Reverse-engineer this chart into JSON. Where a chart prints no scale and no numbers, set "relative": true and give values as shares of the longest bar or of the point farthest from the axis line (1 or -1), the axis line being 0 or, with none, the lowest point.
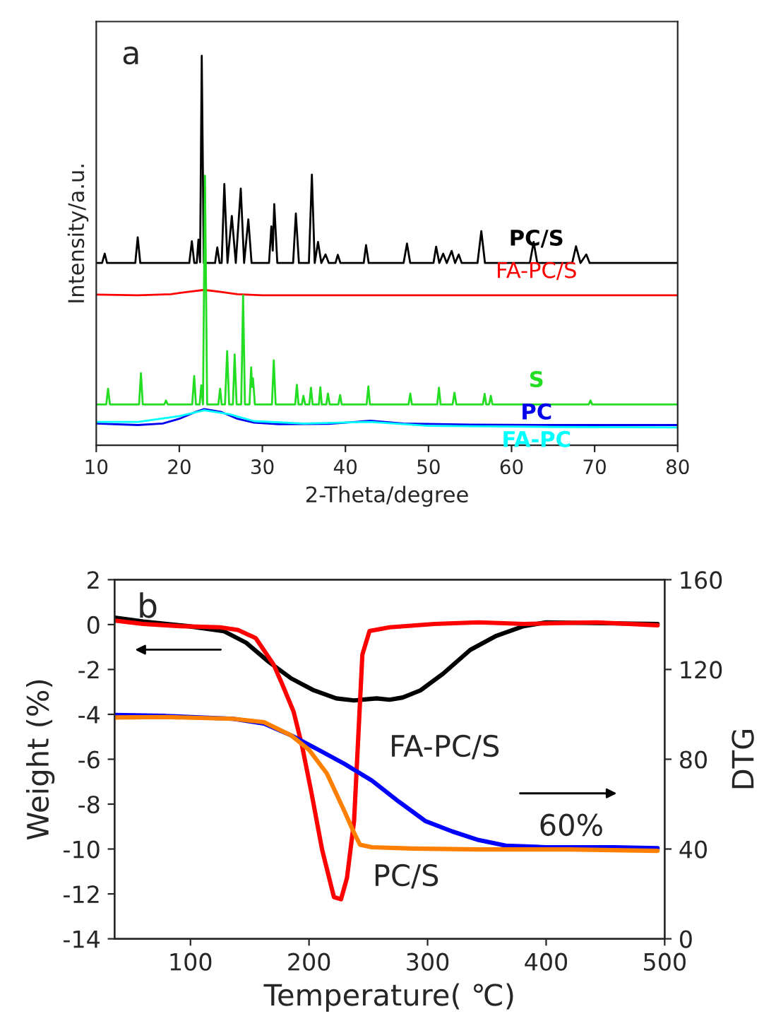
{
  "chart_data": [
    {
      "type": "line",
      "relative": true,
      "xlabel": "2-Theta/degree",
      "ylabel": "Intensity/a.u.",
      "xlim": [
        10,
        80
      ],
      "xticks": [
        10,
        20,
        30,
        40,
        50,
        60,
        70,
        80
      ],
      "legend": false,
      "grid": false,
      "marker": "none",
      "line_style": "solid",
      "annotations": [
        "a"
      ],
      "series": [
        {
          "name": "PC/S",
          "color": "#000000",
          "x": [
            10,
            10.7,
            11.02,
            11.3,
            14.7,
            14.99,
            15.3,
            21.2,
            21.51,
            21.8,
            22.1,
            22.3,
            22.5,
            22.7,
            22.95,
            24.3,
            24.57,
            24.85,
            25.1,
            25.42,
            25.8,
            26.32,
            26.8,
            27.4,
            27.8,
            28.31,
            28.7,
            30.8,
            31.08,
            31.25,
            31.43,
            31.8,
            33.7,
            34.03,
            34.4,
            35.6,
            35.96,
            36.3,
            36.7,
            37.1,
            37.6,
            38.0,
            38.8,
            39.08,
            39.4,
            42.2,
            42.48,
            42.8,
            47.0,
            47.41,
            47.8,
            50.6,
            50.92,
            51.3,
            51.77,
            52.2,
            52.79,
            53.2,
            53.64,
            54.0,
            55.9,
            56.36,
            56.8,
            62.2,
            62.66,
            63.1,
            67.3,
            67.76,
            68.3,
            69.0,
            69.4,
            80
          ],
          "values": [
            0.468,
            0.468,
            0.492,
            0.468,
            0.468,
            0.534,
            0.468,
            0.468,
            0.524,
            0.468,
            0.468,
            0.528,
            0.47,
            1.0,
            0.468,
            0.468,
            0.508,
            0.468,
            0.468,
            0.671,
            0.468,
            0.589,
            0.468,
            0.659,
            0.468,
            0.58,
            0.468,
            0.468,
            0.562,
            0.5,
            0.619,
            0.468,
            0.468,
            0.595,
            0.468,
            0.468,
            0.695,
            0.468,
            0.522,
            0.468,
            0.49,
            0.468,
            0.468,
            0.489,
            0.468,
            0.468,
            0.514,
            0.468,
            0.468,
            0.518,
            0.468,
            0.468,
            0.51,
            0.468,
            0.492,
            0.468,
            0.499,
            0.468,
            0.49,
            0.468,
            0.468,
            0.55,
            0.468,
            0.468,
            0.522,
            0.468,
            0.468,
            0.511,
            0.468,
            0.49,
            0.468,
            0.468
          ]
        },
        {
          "name": "FA-PC/S",
          "color": "#ff0000",
          "x": [
            10,
            15,
            19,
            21,
            23,
            25,
            27,
            30,
            40,
            50,
            60,
            70,
            80
          ],
          "values": [
            0.387,
            0.385,
            0.388,
            0.394,
            0.399,
            0.394,
            0.388,
            0.385,
            0.385,
            0.385,
            0.385,
            0.385,
            0.385
          ]
        },
        {
          "name": "S",
          "color": "#22dd22",
          "x": [
            10,
            11.2,
            11.42,
            11.65,
            15.15,
            15.38,
            15.6,
            18.2,
            18.39,
            18.6,
            21.55,
            21.79,
            22.0,
            22.45,
            22.64,
            22.85,
            23.09,
            23.35,
            24.7,
            24.91,
            25.1,
            25.5,
            25.76,
            26.0,
            26.45,
            26.66,
            26.9,
            27.45,
            27.68,
            27.9,
            28.45,
            28.65,
            28.76,
            28.87,
            29.1,
            31.15,
            31.37,
            31.6,
            33.95,
            34.15,
            34.35,
            34.75,
            34.94,
            35.15,
            35.65,
            35.85,
            36.05,
            36.8,
            36.98,
            37.15,
            37.7,
            37.89,
            38.1,
            39.15,
            39.36,
            39.55,
            42.55,
            42.76,
            42.95,
            47.6,
            47.81,
            48.0,
            51.05,
            51.26,
            51.45,
            52.9,
            53.13,
            53.35,
            56.55,
            56.76,
            56.95,
            57.3,
            57.5,
            57.7,
            69.3,
            69.51,
            69.7,
            80
          ],
          "values": [
            0.105,
            0.105,
            0.145,
            0.105,
            0.105,
            0.185,
            0.105,
            0.105,
            0.115,
            0.105,
            0.105,
            0.178,
            0.105,
            0.105,
            0.154,
            0.105,
            0.692,
            0.105,
            0.105,
            0.145,
            0.105,
            0.105,
            0.242,
            0.105,
            0.105,
            0.233,
            0.105,
            0.105,
            0.385,
            0.105,
            0.105,
            0.2,
            0.15,
            0.172,
            0.105,
            0.105,
            0.218,
            0.105,
            0.105,
            0.155,
            0.105,
            0.105,
            0.127,
            0.105,
            0.105,
            0.148,
            0.105,
            0.105,
            0.149,
            0.105,
            0.105,
            0.133,
            0.105,
            0.105,
            0.129,
            0.105,
            0.105,
            0.151,
            0.105,
            0.105,
            0.133,
            0.105,
            0.105,
            0.148,
            0.105,
            0.105,
            0.135,
            0.105,
            0.105,
            0.132,
            0.105,
            0.105,
            0.127,
            0.105,
            0.105,
            0.115,
            0.105,
            0.105
          ]
        },
        {
          "name": "PC",
          "color": "#0000ee",
          "x": [
            10,
            15,
            18,
            20,
            22,
            23,
            25,
            27,
            29,
            32,
            38,
            43,
            47,
            55,
            65,
            80
          ],
          "values": [
            0.056,
            0.052,
            0.056,
            0.068,
            0.086,
            0.093,
            0.086,
            0.068,
            0.058,
            0.054,
            0.055,
            0.063,
            0.056,
            0.053,
            0.052,
            0.052
          ]
        },
        {
          "name": "FA-PC",
          "color": "#00ffff",
          "x": [
            10,
            15,
            20,
            23,
            26,
            29,
            35,
            43,
            50,
            65,
            80
          ],
          "values": [
            0.06,
            0.06,
            0.075,
            0.09,
            0.08,
            0.062,
            0.056,
            0.06,
            0.05,
            0.047,
            0.046
          ]
        }
      ]
    },
    {
      "type": "line",
      "xlabel": "Temperature( ℃)",
      "ylabel": "Weight (%)",
      "y2label": "DTG",
      "xlim": [
        36,
        500
      ],
      "xticks": [
        100,
        200,
        300,
        400,
        500
      ],
      "ylim": [
        -14,
        2
      ],
      "yticks": [
        -14,
        -12,
        -10,
        -8,
        -6,
        -4,
        -2,
        0,
        2
      ],
      "y2lim": [
        0,
        160
      ],
      "y2ticks": [
        0,
        40,
        80,
        120,
        160
      ],
      "legend": false,
      "grid": false,
      "marker": "none",
      "line_style": "solid",
      "annotations": [
        "b",
        "FA-PC/S",
        "PC/S",
        "60%"
      ],
      "series": [
        {
          "color": "#000000",
          "x": [
            36,
            60,
            98,
            128,
            147,
            166,
            185,
            204,
            223,
            238,
            257,
            268,
            279,
            294,
            313,
            336,
            358,
            381,
            400,
            438,
            494
          ],
          "values": [
            0.31,
            0.14,
            -0.07,
            -0.29,
            -0.81,
            -1.66,
            -2.4,
            -2.93,
            -3.29,
            -3.38,
            -3.29,
            -3.35,
            -3.25,
            -2.93,
            -2.19,
            -1.13,
            -0.5,
            -0.07,
            0.1,
            0.07,
            0.03
          ]
        },
        {
          "color": "#ff0000",
          "x": [
            36,
            60,
            91,
            125,
            140,
            155,
            170,
            177,
            187,
            194,
            202,
            211,
            221,
            227,
            232,
            238,
            245,
            251,
            268,
            306,
            343,
            381,
            442,
            494
          ],
          "values": [
            0.18,
            0.03,
            -0.07,
            -0.12,
            -0.24,
            -0.6,
            -1.77,
            -2.61,
            -3.88,
            -5.37,
            -7.48,
            -10.02,
            -12.14,
            -12.24,
            -11.29,
            -8.75,
            -1.34,
            -0.29,
            -0.12,
            0.03,
            0.1,
            0.03,
            0.1,
            -0.03
          ]
        },
        {
          "color": "#0000ff",
          "axis": "y2",
          "x": [
            36,
            79,
            136,
            162,
            185,
            208,
            230,
            253,
            276,
            298,
            321,
            343,
            366,
            400,
            457,
            494
          ],
          "values": [
            99.7,
            99.3,
            98.0,
            95.9,
            90.6,
            84.2,
            77.9,
            70.5,
            61.0,
            52.5,
            47.8,
            44.0,
            41.5,
            40.8,
            40.8,
            40.4
          ]
        },
        {
          "color": "#ff8000",
          "axis": "y2",
          "x": [
            36,
            79,
            136,
            162,
            185,
            200,
            215,
            230,
            238,
            243,
            253,
            287,
            343,
            419,
            494
          ],
          "values": [
            98.6,
            98.8,
            98.0,
            96.5,
            90.6,
            84.2,
            73.7,
            56.7,
            47.2,
            41.9,
            40.8,
            40.2,
            39.8,
            39.8,
            39.2
          ]
        }
      ]
    }
  ]
}
